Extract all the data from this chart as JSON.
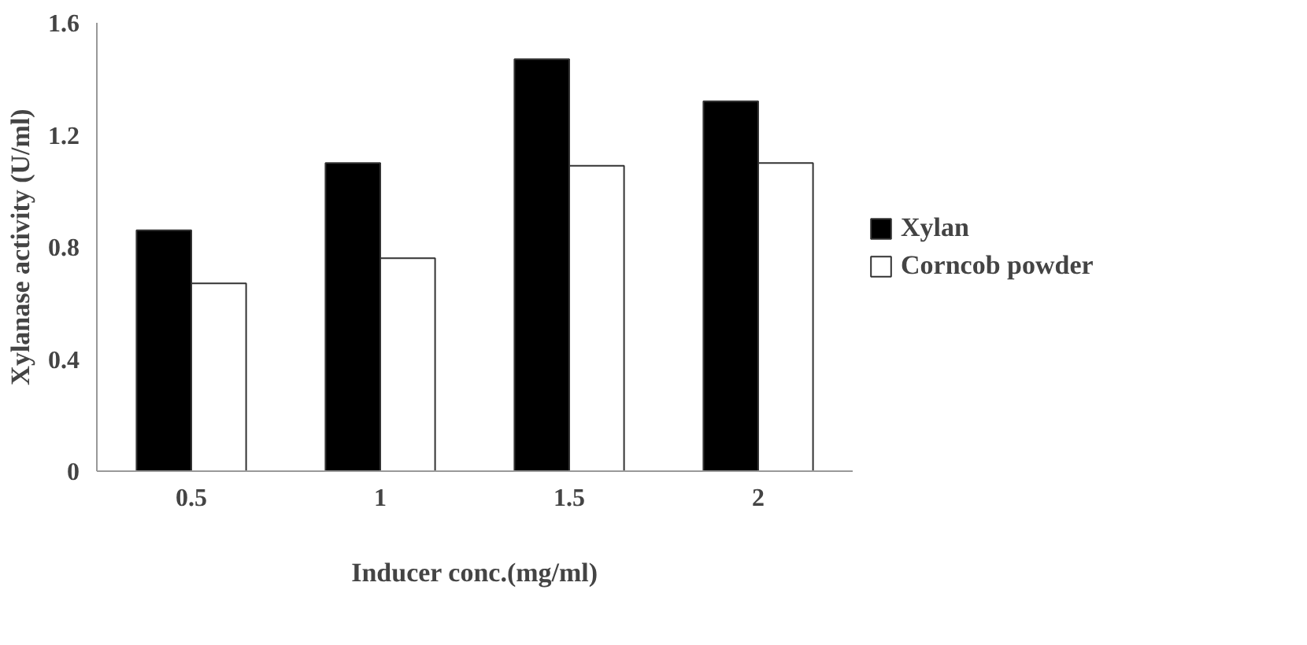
{
  "chart_data": {
    "type": "bar",
    "xlabel": "Inducer conc.(mg/ml)",
    "ylabel": "Xylanase activity (U/ml)",
    "categories": [
      "0.5",
      "1",
      "1.5",
      "2"
    ],
    "series": [
      {
        "name": "Xylan",
        "color": "#000000",
        "values": [
          0.86,
          1.1,
          1.47,
          1.32
        ]
      },
      {
        "name": "Corncob powder",
        "color": "#ffffff",
        "values": [
          0.67,
          0.76,
          1.09,
          1.1
        ]
      }
    ],
    "ylim": [
      0,
      1.6
    ],
    "yticks": [
      0,
      0.4,
      0.8,
      1.2,
      1.6
    ],
    "grid": false,
    "legend": "right"
  }
}
